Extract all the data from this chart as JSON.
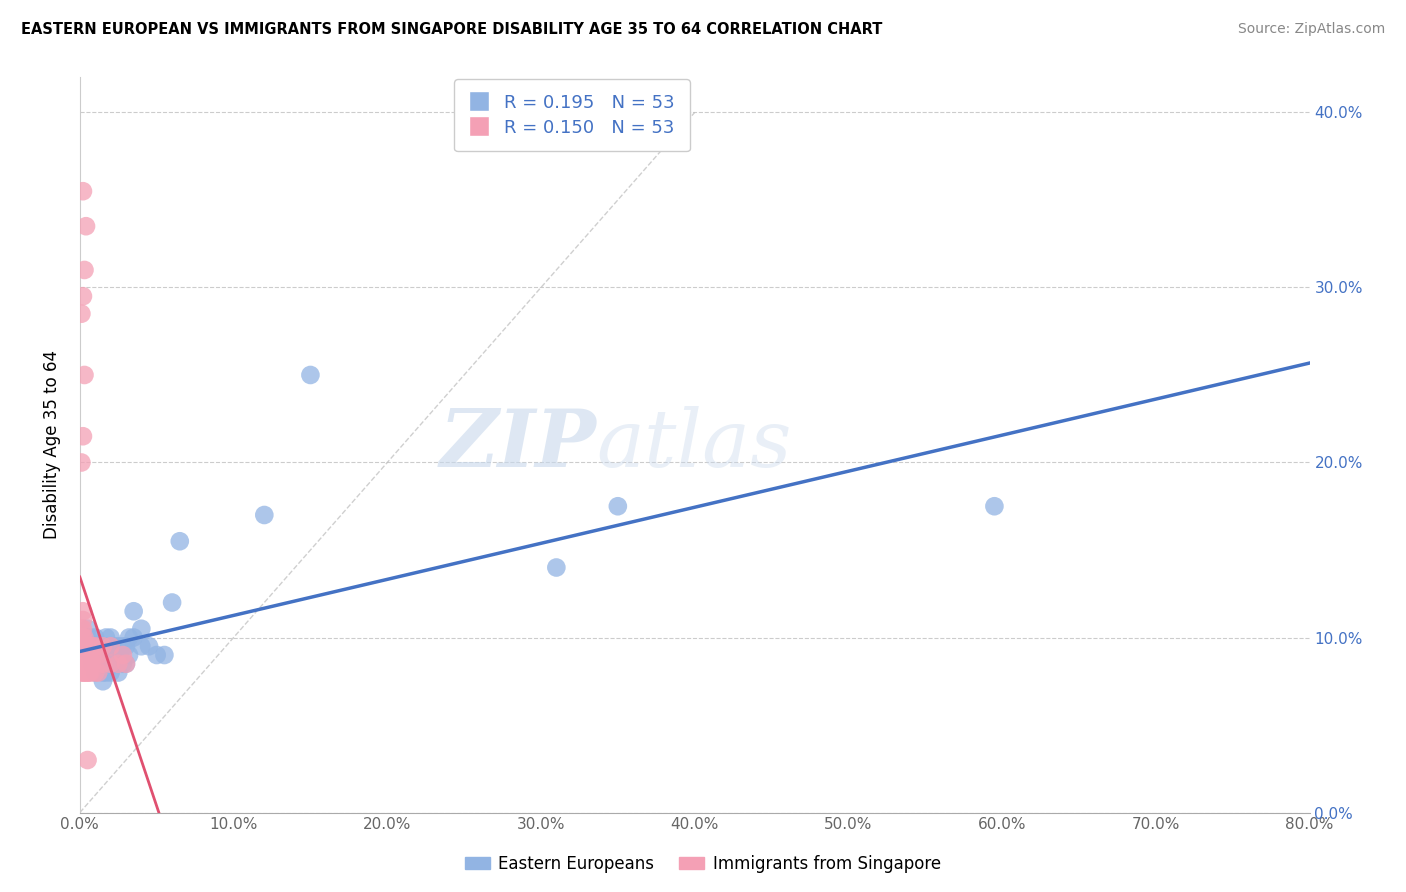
{
  "title": "EASTERN EUROPEAN VS IMMIGRANTS FROM SINGAPORE DISABILITY AGE 35 TO 64 CORRELATION CHART",
  "source": "Source: ZipAtlas.com",
  "ylabel": "Disability Age 35 to 64",
  "xlim": [
    0.0,
    0.8
  ],
  "ylim": [
    0.0,
    0.42
  ],
  "x_ticks": [
    0.0,
    0.1,
    0.2,
    0.3,
    0.4,
    0.5,
    0.6,
    0.7,
    0.8
  ],
  "y_ticks": [
    0.0,
    0.1,
    0.2,
    0.3,
    0.4
  ],
  "x_tick_labels": [
    "0.0%",
    "10.0%",
    "20.0%",
    "30.0%",
    "40.0%",
    "50.0%",
    "60.0%",
    "70.0%",
    "80.0%"
  ],
  "y_tick_labels": [
    "0.0%",
    "10.0%",
    "20.0%",
    "30.0%",
    "40.0%"
  ],
  "legend_labels": [
    "Eastern Europeans",
    "Immigrants from Singapore"
  ],
  "blue_color": "#92b4e3",
  "pink_color": "#f4a0b5",
  "blue_line_color": "#4472c4",
  "pink_line_color": "#e05070",
  "pink_dash_color": "#d4a0b0",
  "R_blue": 0.195,
  "N_blue": 53,
  "R_pink": 0.15,
  "N_pink": 53,
  "watermark_zip": "ZIP",
  "watermark_atlas": "atlas",
  "blue_scatter_x": [
    0.005,
    0.005,
    0.005,
    0.007,
    0.007,
    0.007,
    0.008,
    0.008,
    0.008,
    0.01,
    0.01,
    0.01,
    0.01,
    0.01,
    0.012,
    0.012,
    0.012,
    0.015,
    0.015,
    0.015,
    0.015,
    0.017,
    0.017,
    0.017,
    0.018,
    0.02,
    0.02,
    0.02,
    0.022,
    0.022,
    0.025,
    0.025,
    0.025,
    0.028,
    0.028,
    0.03,
    0.03,
    0.032,
    0.032,
    0.035,
    0.035,
    0.04,
    0.04,
    0.045,
    0.05,
    0.055,
    0.06,
    0.065,
    0.12,
    0.15,
    0.31,
    0.35,
    0.595
  ],
  "blue_scatter_y": [
    0.095,
    0.1,
    0.105,
    0.09,
    0.095,
    0.1,
    0.085,
    0.09,
    0.095,
    0.08,
    0.085,
    0.09,
    0.095,
    0.1,
    0.085,
    0.09,
    0.095,
    0.075,
    0.08,
    0.085,
    0.09,
    0.08,
    0.09,
    0.1,
    0.095,
    0.08,
    0.09,
    0.1,
    0.085,
    0.095,
    0.08,
    0.09,
    0.095,
    0.085,
    0.095,
    0.085,
    0.095,
    0.09,
    0.1,
    0.1,
    0.115,
    0.095,
    0.105,
    0.095,
    0.09,
    0.09,
    0.12,
    0.155,
    0.17,
    0.25,
    0.14,
    0.175,
    0.175
  ],
  "pink_scatter_x": [
    0.001,
    0.001,
    0.001,
    0.001,
    0.001,
    0.001,
    0.002,
    0.002,
    0.002,
    0.002,
    0.002,
    0.002,
    0.002,
    0.002,
    0.003,
    0.003,
    0.003,
    0.003,
    0.003,
    0.004,
    0.004,
    0.004,
    0.005,
    0.005,
    0.005,
    0.005,
    0.006,
    0.006,
    0.007,
    0.007,
    0.008,
    0.008,
    0.01,
    0.01,
    0.01,
    0.012,
    0.012,
    0.015,
    0.015,
    0.02,
    0.02,
    0.025,
    0.028,
    0.03,
    0.001,
    0.002,
    0.003,
    0.001,
    0.002,
    0.003,
    0.004,
    0.002,
    0.005
  ],
  "pink_scatter_y": [
    0.08,
    0.085,
    0.09,
    0.095,
    0.1,
    0.105,
    0.08,
    0.085,
    0.09,
    0.095,
    0.1,
    0.105,
    0.11,
    0.115,
    0.08,
    0.085,
    0.09,
    0.095,
    0.1,
    0.08,
    0.085,
    0.09,
    0.08,
    0.085,
    0.09,
    0.095,
    0.08,
    0.09,
    0.08,
    0.09,
    0.085,
    0.095,
    0.08,
    0.09,
    0.095,
    0.08,
    0.09,
    0.085,
    0.095,
    0.085,
    0.095,
    0.085,
    0.09,
    0.085,
    0.2,
    0.215,
    0.25,
    0.285,
    0.295,
    0.31,
    0.335,
    0.355,
    0.03
  ]
}
